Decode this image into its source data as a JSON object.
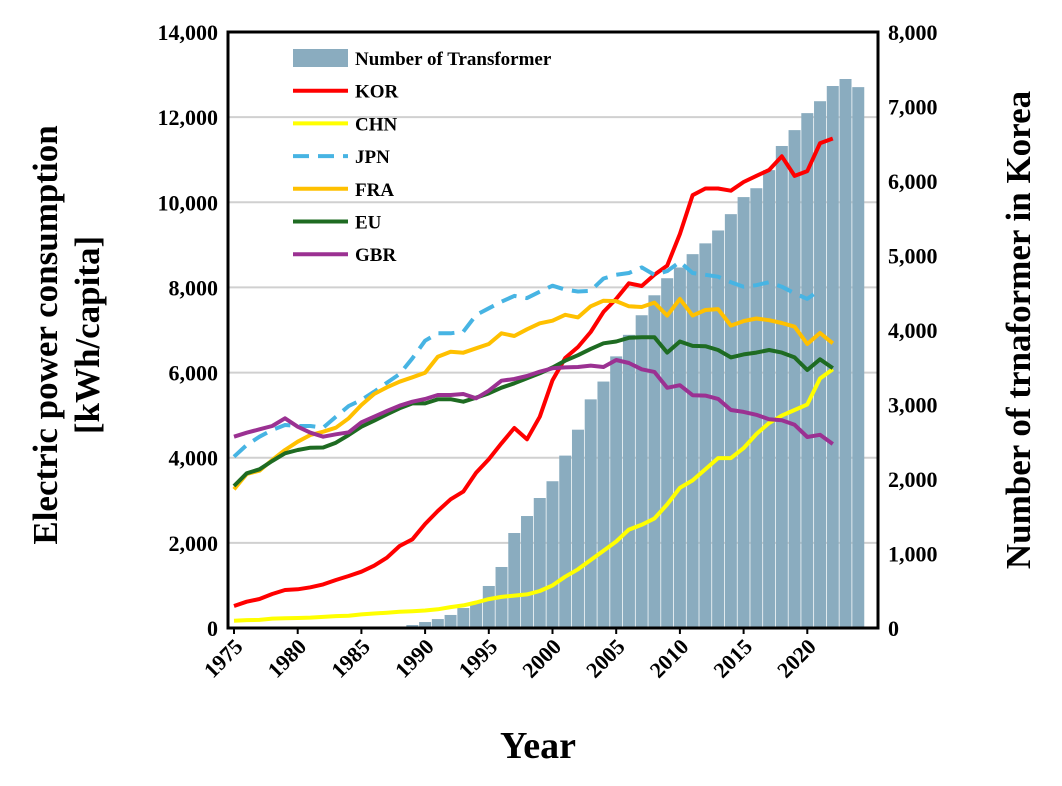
{
  "chart_data": {
    "type": "bar+line",
    "xlabel": "Year",
    "ylabel_left": [
      "Electric power consumption",
      "[kWh/capita]"
    ],
    "ylabel_right": "Number of trnaformer in Korea",
    "ylim_left": [
      0,
      14000
    ],
    "ylim_right": [
      0,
      8000
    ],
    "yticks_left": [
      "0",
      "2,000",
      "4,000",
      "6,000",
      "8,000",
      "10,000",
      "12,000",
      "14,000"
    ],
    "yticks_right": [
      "0",
      "1,000",
      "2,000",
      "3,000",
      "4,000",
      "5,000",
      "6,000",
      "7,000",
      "8,000"
    ],
    "xticks": [
      "1975",
      "1980",
      "1985",
      "1990",
      "1995",
      "2000",
      "2005",
      "2010",
      "2015",
      "2020"
    ],
    "grid": "horizontal",
    "legend": "top-left",
    "bar_series": {
      "name": "Number of Transformer",
      "axis": "right",
      "color": "#8AACBF",
      "x": [
        1975,
        1976,
        1977,
        1978,
        1979,
        1980,
        1981,
        1982,
        1983,
        1984,
        1985,
        1986,
        1987,
        1988,
        1989,
        1990,
        1991,
        1992,
        1993,
        1994,
        1995,
        1996,
        1997,
        1998,
        1999,
        2000,
        2001,
        2002,
        2003,
        2004,
        2005,
        2006,
        2007,
        2008,
        2009,
        2010,
        2011,
        2012,
        2013,
        2014,
        2015,
        2016,
        2017,
        2018,
        2019,
        2020,
        2021,
        2022,
        2023,
        2024
      ],
      "values": [
        0,
        0,
        0,
        0,
        0,
        0,
        0,
        0,
        0,
        0,
        0,
        0,
        0,
        15,
        40,
        80,
        120,
        175,
        268,
        335,
        564,
        819,
        1275,
        1503,
        1745,
        1970,
        2314,
        2662,
        3069,
        3308,
        3646,
        3935,
        4198,
        4466,
        4695,
        4839,
        5018,
        5163,
        5336,
        5555,
        5784,
        5903,
        6146,
        6470,
        6683,
        6911,
        7071,
        7275,
        7369,
        7260
      ]
    },
    "x_lines": [
      1975,
      1976,
      1977,
      1978,
      1979,
      1980,
      1981,
      1982,
      1983,
      1984,
      1985,
      1986,
      1987,
      1988,
      1989,
      1990,
      1991,
      1992,
      1993,
      1994,
      1995,
      1996,
      1997,
      1998,
      1999,
      2000,
      2001,
      2002,
      2003,
      2004,
      2005,
      2006,
      2007,
      2008,
      2009,
      2010,
      2011,
      2012,
      2013,
      2014,
      2015,
      2016,
      2017,
      2018,
      2019,
      2020,
      2021,
      2022
    ],
    "series": [
      {
        "name": "KOR",
        "color": "#FF0000",
        "dash": false,
        "values": [
          517,
          618,
          681,
          799,
          893,
          908,
          955,
          1025,
          1127,
          1221,
          1323,
          1464,
          1652,
          1926,
          2083,
          2443,
          2748,
          3023,
          3203,
          3649,
          3963,
          4339,
          4698,
          4432,
          4964,
          5820,
          6342,
          6600,
          6953,
          7425,
          7730,
          8097,
          8034,
          8297,
          8513,
          9255,
          10167,
          10324,
          10324,
          10272,
          10477,
          10620,
          10759,
          11080,
          10620,
          10733,
          11386,
          11499
        ]
      },
      {
        "name": "CHN",
        "color": "#FFFF00",
        "dash": false,
        "values": [
          172,
          185,
          190,
          220,
          230,
          235,
          245,
          260,
          280,
          290,
          320,
          340,
          360,
          380,
          395,
          410,
          440,
          490,
          530,
          600,
          680,
          730,
          760,
          790,
          870,
          1000,
          1206,
          1379,
          1597,
          1815,
          2032,
          2311,
          2424,
          2572,
          2903,
          3293,
          3467,
          3728,
          3991,
          3991,
          4226,
          4555,
          4815,
          4989,
          5121,
          5252,
          5861,
          6077
        ]
      },
      {
        "name": "JPN",
        "color": "#47B4E3",
        "dash": true,
        "values": [
          4024,
          4299,
          4494,
          4651,
          4768,
          4745,
          4745,
          4705,
          4964,
          5215,
          5356,
          5551,
          5763,
          5966,
          6335,
          6749,
          6922,
          6922,
          6961,
          7352,
          7510,
          7665,
          7800,
          7750,
          7900,
          8040,
          7949,
          7905,
          7920,
          8210,
          8297,
          8339,
          8470,
          8297,
          8384,
          8600,
          8339,
          8297,
          8252,
          8123,
          8017,
          8052,
          8123,
          8017,
          7862,
          7730,
          7950,
          null
        ]
      },
      {
        "name": "FRA",
        "color": "#FFC000",
        "dash": false,
        "values": [
          3258,
          3618,
          3695,
          3946,
          4181,
          4377,
          4534,
          4612,
          4705,
          4926,
          5238,
          5497,
          5654,
          5786,
          5889,
          5997,
          6373,
          6490,
          6467,
          6570,
          6671,
          6922,
          6859,
          7016,
          7157,
          7218,
          7357,
          7296,
          7557,
          7688,
          7680,
          7557,
          7540,
          7644,
          7338,
          7730,
          7338,
          7470,
          7490,
          7103,
          7209,
          7270,
          7230,
          7164,
          7078,
          6671,
          6930,
          6688
        ]
      },
      {
        "name": "EU",
        "color": "#1E6B22",
        "dash": false,
        "values": [
          3336,
          3633,
          3727,
          3923,
          4103,
          4181,
          4236,
          4240,
          4353,
          4534,
          4729,
          4870,
          5019,
          5160,
          5277,
          5277,
          5371,
          5375,
          5316,
          5410,
          5512,
          5645,
          5747,
          5865,
          5982,
          6120,
          6279,
          6408,
          6556,
          6688,
          6730,
          6817,
          6830,
          6830,
          6469,
          6730,
          6627,
          6620,
          6530,
          6356,
          6427,
          6469,
          6530,
          6469,
          6356,
          6061,
          6312,
          6105
        ]
      },
      {
        "name": "GBR",
        "color": "#9B3192",
        "dash": false,
        "values": [
          4494,
          4588,
          4667,
          4745,
          4926,
          4729,
          4588,
          4494,
          4550,
          4596,
          4832,
          4964,
          5097,
          5222,
          5316,
          5379,
          5473,
          5473,
          5497,
          5395,
          5575,
          5810,
          5849,
          5920,
          6021,
          6100,
          6121,
          6130,
          6164,
          6130,
          6295,
          6225,
          6077,
          6016,
          5643,
          5704,
          5469,
          5460,
          5382,
          5121,
          5076,
          5008,
          4903,
          4880,
          4773,
          4487,
          4538,
          4322
        ]
      }
    ]
  }
}
